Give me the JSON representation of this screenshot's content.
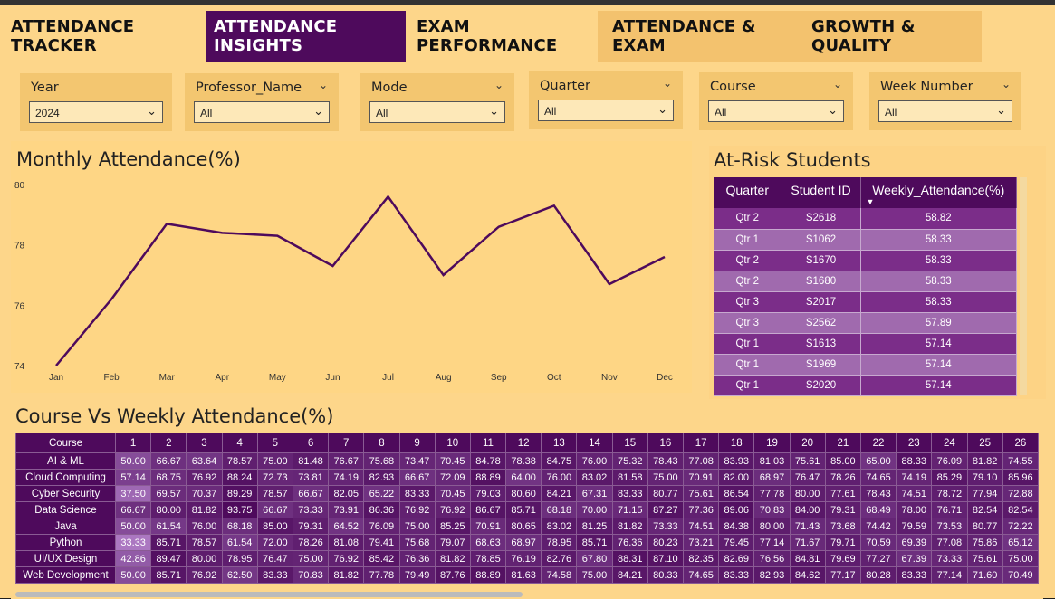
{
  "tabs": [
    {
      "label": "ATTENDANCE TRACKER",
      "active": false
    },
    {
      "label": "ATTENDANCE INSIGHTS",
      "active": true
    },
    {
      "label": "EXAM PERFORMANCE",
      "active": false
    },
    {
      "label": "ATTENDANCE & EXAM",
      "active": false
    },
    {
      "label": "GROWTH & QUALITY",
      "active": false
    }
  ],
  "filters": [
    {
      "label": "Year",
      "value": "2024"
    },
    {
      "label": "Professor_Name",
      "value": "All"
    },
    {
      "label": "Mode",
      "value": "All"
    },
    {
      "label": "Quarter",
      "value": "All"
    },
    {
      "label": "Course",
      "value": "All"
    },
    {
      "label": "Week Number",
      "value": "All"
    }
  ],
  "monthly": {
    "title": "Monthly Attendance(%)"
  },
  "chart_data": {
    "type": "line",
    "title": "Monthly Attendance(%)",
    "categories": [
      "Jan",
      "Feb",
      "Mar",
      "Apr",
      "May",
      "Jun",
      "Jul",
      "Aug",
      "Sep",
      "Oct",
      "Nov",
      "Dec"
    ],
    "values": [
      74.0,
      76.2,
      78.7,
      78.4,
      78.3,
      77.3,
      79.6,
      77.0,
      78.6,
      79.3,
      76.7,
      77.6
    ],
    "ylim": [
      74,
      80
    ],
    "yticks": [
      "80",
      "78",
      "76",
      "74"
    ],
    "color": "#4e0a5c"
  },
  "risk": {
    "title": "At-Risk Students",
    "headers": [
      "Quarter",
      "Student ID",
      "Weekly_Attendance(%)"
    ],
    "rows": [
      [
        "Qtr 2",
        "S2618",
        "58.82"
      ],
      [
        "Qtr 1",
        "S1062",
        "58.33"
      ],
      [
        "Qtr 2",
        "S1670",
        "58.33"
      ],
      [
        "Qtr 2",
        "S1680",
        "58.33"
      ],
      [
        "Qtr 3",
        "S2017",
        "58.33"
      ],
      [
        "Qtr 3",
        "S2562",
        "57.89"
      ],
      [
        "Qtr 1",
        "S1613",
        "57.14"
      ],
      [
        "Qtr 1",
        "S1969",
        "57.14"
      ],
      [
        "Qtr 1",
        "S2020",
        "57.14"
      ]
    ]
  },
  "heat": {
    "title": "Course Vs Weekly Attendance(%)",
    "col_header": "Course",
    "weeks": [
      "1",
      "2",
      "3",
      "4",
      "5",
      "6",
      "7",
      "8",
      "9",
      "10",
      "11",
      "12",
      "13",
      "14",
      "15",
      "16",
      "17",
      "18",
      "19",
      "20",
      "21",
      "22",
      "23",
      "24",
      "25",
      "26"
    ],
    "rows": [
      {
        "course": "AI & ML",
        "values": [
          "50.00",
          "66.67",
          "63.64",
          "78.57",
          "75.00",
          "81.48",
          "76.67",
          "75.68",
          "73.47",
          "70.45",
          "84.78",
          "78.38",
          "84.75",
          "76.00",
          "75.32",
          "78.43",
          "77.08",
          "83.93",
          "81.03",
          "75.61",
          "85.00",
          "65.00",
          "88.33",
          "76.09",
          "81.82",
          "74.55"
        ]
      },
      {
        "course": "Cloud Computing",
        "values": [
          "57.14",
          "68.75",
          "76.92",
          "88.24",
          "72.73",
          "73.81",
          "74.19",
          "82.93",
          "66.67",
          "72.09",
          "88.89",
          "64.00",
          "76.00",
          "83.02",
          "81.58",
          "75.00",
          "70.91",
          "82.00",
          "68.97",
          "76.47",
          "78.26",
          "74.65",
          "74.19",
          "85.29",
          "79.10",
          "85.96"
        ]
      },
      {
        "course": "Cyber Security",
        "values": [
          "37.50",
          "69.57",
          "70.37",
          "89.29",
          "78.57",
          "66.67",
          "82.05",
          "65.22",
          "83.33",
          "70.45",
          "79.03",
          "80.60",
          "84.21",
          "67.31",
          "83.33",
          "80.77",
          "75.61",
          "86.54",
          "77.78",
          "80.00",
          "77.61",
          "78.43",
          "74.51",
          "78.72",
          "77.94",
          "72.88"
        ]
      },
      {
        "course": "Data Science",
        "values": [
          "66.67",
          "80.00",
          "81.82",
          "93.75",
          "66.67",
          "73.33",
          "73.91",
          "86.36",
          "76.92",
          "76.92",
          "86.67",
          "85.71",
          "68.18",
          "70.00",
          "71.15",
          "87.27",
          "77.36",
          "89.06",
          "70.83",
          "84.00",
          "79.31",
          "68.49",
          "78.00",
          "76.71",
          "82.54",
          "82.54"
        ]
      },
      {
        "course": "Java",
        "values": [
          "50.00",
          "61.54",
          "76.00",
          "68.18",
          "85.00",
          "79.31",
          "64.52",
          "76.09",
          "75.00",
          "85.25",
          "70.91",
          "80.65",
          "83.02",
          "81.25",
          "81.82",
          "73.33",
          "74.51",
          "84.38",
          "80.00",
          "71.43",
          "73.68",
          "74.42",
          "79.59",
          "73.53",
          "80.77",
          "72.22"
        ]
      },
      {
        "course": "Python",
        "values": [
          "33.33",
          "85.71",
          "78.57",
          "61.54",
          "72.00",
          "78.26",
          "81.08",
          "79.41",
          "75.68",
          "79.07",
          "68.63",
          "68.97",
          "78.95",
          "85.71",
          "76.36",
          "80.23",
          "73.21",
          "79.45",
          "77.14",
          "71.67",
          "79.71",
          "70.59",
          "69.39",
          "77.08",
          "75.86",
          "65.12"
        ]
      },
      {
        "course": "UI/UX Design",
        "values": [
          "42.86",
          "89.47",
          "80.00",
          "78.95",
          "76.47",
          "75.00",
          "76.92",
          "85.42",
          "76.36",
          "81.82",
          "78.85",
          "76.19",
          "82.76",
          "67.80",
          "88.31",
          "87.10",
          "82.35",
          "82.69",
          "76.56",
          "84.81",
          "79.69",
          "77.27",
          "67.39",
          "73.33",
          "75.61",
          "75.00"
        ]
      },
      {
        "course": "Web Development",
        "values": [
          "50.00",
          "85.71",
          "76.92",
          "62.50",
          "83.33",
          "70.83",
          "81.82",
          "77.78",
          "79.49",
          "87.76",
          "88.89",
          "81.63",
          "74.58",
          "75.00",
          "84.21",
          "80.33",
          "74.65",
          "83.33",
          "82.93",
          "84.62",
          "77.17",
          "80.28",
          "83.33",
          "77.14",
          "71.60",
          "70.49"
        ]
      }
    ]
  }
}
